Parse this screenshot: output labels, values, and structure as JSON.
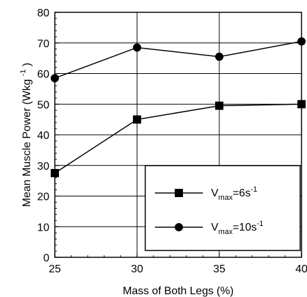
{
  "chart_data": {
    "type": "line",
    "xlabel": "Mass  of Both Legs (%)",
    "ylabel": {
      "main": "Mean Muscle Power (Wkg",
      "sup": "-1",
      "close": ")"
    },
    "xlim": [
      25,
      40
    ],
    "ylim": [
      0,
      80
    ],
    "x_ticks": [
      25,
      30,
      35,
      40
    ],
    "y_ticks": [
      0,
      10,
      20,
      30,
      40,
      50,
      60,
      70,
      80
    ],
    "grid": true,
    "legend_position": "bottom-right",
    "series": [
      {
        "legend": {
          "base": "V",
          "sub": "max",
          "rest": "=6s",
          "sup": "-1"
        },
        "marker": "square",
        "x": [
          25,
          30,
          35,
          40
        ],
        "y": [
          27.5,
          45,
          49.5,
          50
        ]
      },
      {
        "legend": {
          "base": "V",
          "sub": "max",
          "rest": "=10s",
          "sup": "-1"
        },
        "marker": "circle",
        "x": [
          25,
          30,
          35,
          40
        ],
        "y": [
          58.5,
          68.5,
          65.5,
          70.5
        ]
      }
    ],
    "colors": {
      "line": "#000000",
      "grid": "#000000",
      "background": "#ffffff"
    }
  }
}
